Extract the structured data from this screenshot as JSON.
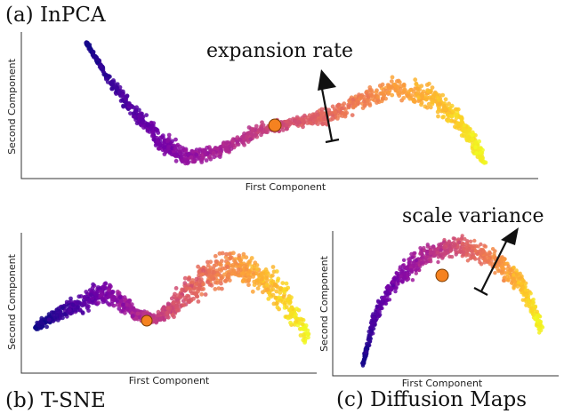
{
  "colormap": [
    "#0d0887",
    "#46039f",
    "#7201a8",
    "#9c179e",
    "#bd3786",
    "#d8576b",
    "#ed7953",
    "#fb9f3a",
    "#fdca26",
    "#f0f921"
  ],
  "marker_color": "#f58220",
  "chart_data": [
    {
      "type": "scatter",
      "panel_label": "(a) InPCA",
      "xlabel": "First Component",
      "ylabel": "Second Component",
      "annotation": "expansion rate",
      "color_encoding": "plasma colormap along the first component (dark purple = low, yellow = high)",
      "highlight_point": {
        "t": 0.44,
        "color": "orange"
      },
      "grid": false,
      "legend": "none"
    },
    {
      "type": "scatter",
      "panel_label": "(b) T-SNE",
      "xlabel": "First Component",
      "ylabel": "Second Component",
      "annotation": "",
      "color_encoding": "plasma colormap (dark purple = low, yellow = high)",
      "highlight_point": {
        "t": 0.42,
        "color": "orange"
      },
      "grid": false,
      "legend": "none"
    },
    {
      "type": "scatter",
      "panel_label": "(c) Diffusion Maps",
      "xlabel": "First Component",
      "ylabel": "Second Component",
      "annotation": "scale variance",
      "color_encoding": "plasma colormap along the arc (dark purple = low, yellow = high)",
      "highlight_point": {
        "t": 0.42,
        "color": "orange"
      },
      "grid": false,
      "legend": "none"
    }
  ]
}
